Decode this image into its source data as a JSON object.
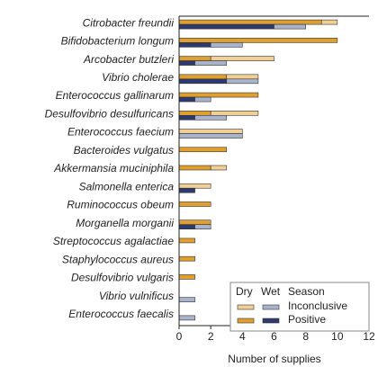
{
  "chart_data": {
    "type": "bar",
    "orientation": "horizontal",
    "categories": [
      "Citrobacter freundii",
      "Bifidobacterium longum",
      "Arcobacter butzleri",
      "Vibrio cholerae",
      "Enterococcus gallinarum",
      "Desulfovibrio desulfuricans",
      "Enterococcus faecium",
      "Bacteroides vulgatus",
      "Akkermansia muciniphila",
      "Salmonella enterica",
      "Ruminococcus obeum",
      "Morganella morganii",
      "Streptococcus agalactiae",
      "Staphylococcus aureus",
      "Desulfovibrio vulgaris",
      "Vibrio vulnificus",
      "Enterococcus faecalis"
    ],
    "statuses": [
      "Inconclusive",
      "Positive"
    ],
    "legend_title": "Season",
    "groups": [
      {
        "name": "Dry",
        "colors": [
          "#f2cf94",
          "#e0a030"
        ],
        "values": [
          [
            1,
            0,
            4,
            2,
            0,
            3,
            4,
            0,
            1,
            2,
            0,
            0,
            0,
            0,
            0,
            0,
            0
          ],
          [
            9,
            10,
            2,
            3,
            5,
            2,
            0,
            3,
            2,
            0,
            2,
            2,
            1,
            1,
            1,
            0,
            0
          ]
        ]
      },
      {
        "name": "Wet",
        "colors": [
          "#a9b4cc",
          "#2e3a6e"
        ],
        "values": [
          [
            2,
            2,
            2,
            2,
            1,
            2,
            4,
            0,
            0,
            0,
            0,
            1,
            0,
            0,
            0,
            1,
            1
          ],
          [
            6,
            2,
            1,
            3,
            1,
            1,
            0,
            0,
            0,
            1,
            0,
            1,
            0,
            0,
            0,
            0,
            0
          ]
        ]
      }
    ],
    "xlabel": "Number of supplies",
    "xlim": [
      0,
      12
    ],
    "xticks": [
      0,
      2,
      4,
      6,
      8,
      10,
      12
    ],
    "legend_position": "lower right"
  }
}
